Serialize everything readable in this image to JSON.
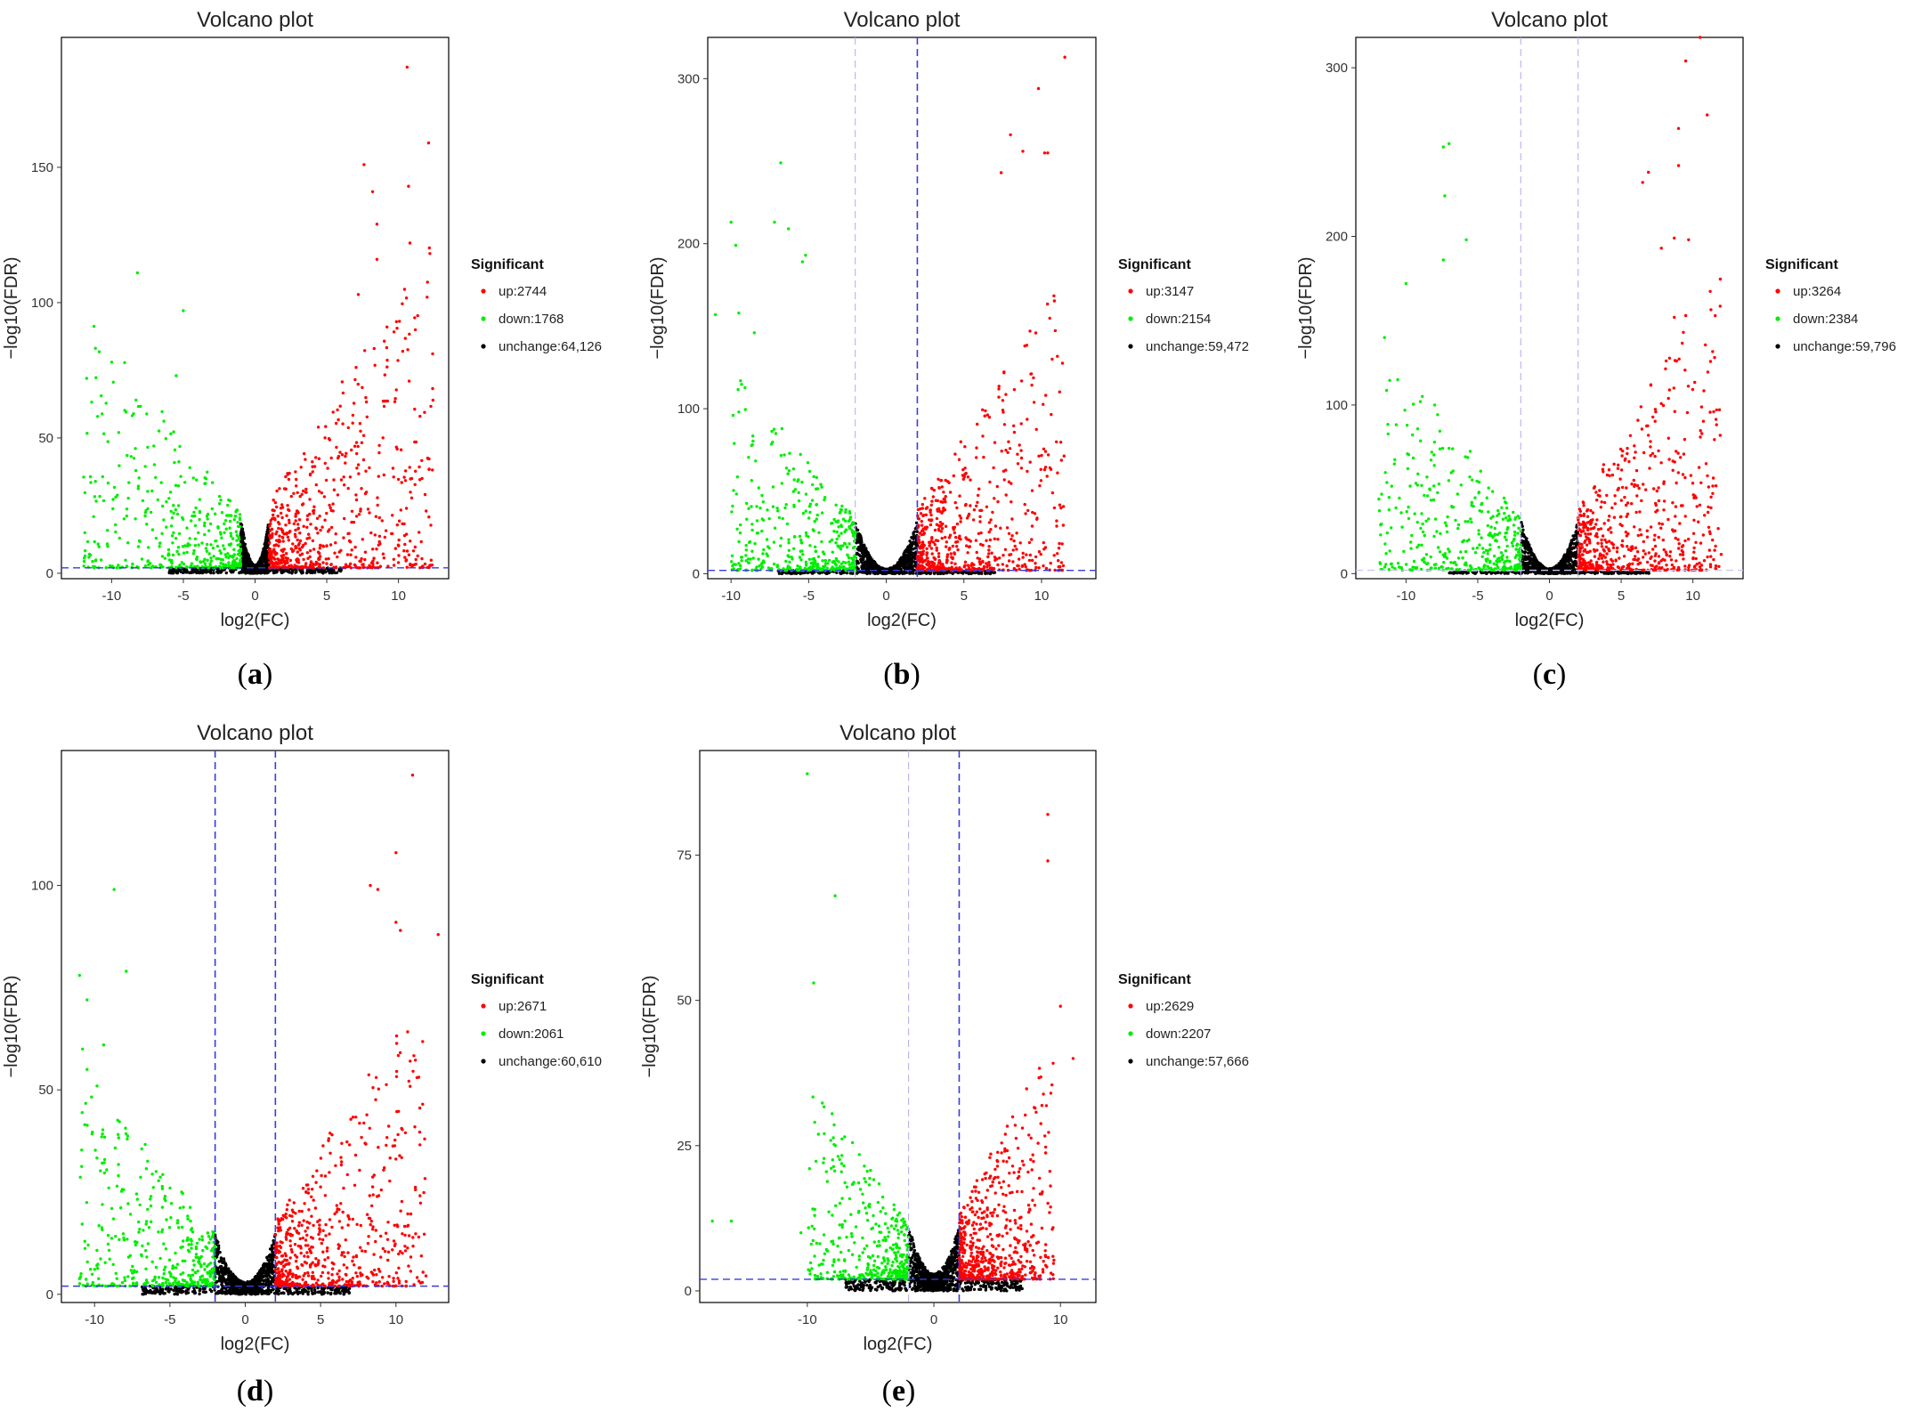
{
  "chart_data": [
    {
      "id": "a",
      "panel_label": "a",
      "type": "scatter",
      "title": "Volcano plot",
      "xlabel": "log2(FC)",
      "ylabel": "−log10(FDR)",
      "xlim": [
        -13.5,
        13.5
      ],
      "ylim": [
        -2,
        198
      ],
      "xticks": [
        -10,
        -5,
        0,
        5,
        10
      ],
      "yticks": [
        0,
        50,
        100,
        150
      ],
      "fc_threshold": 1,
      "fdr_line": 2,
      "vlines_visible": false,
      "hline_visible": true,
      "legend": {
        "title": "Significant",
        "position": "right",
        "entries": [
          {
            "label": "up:2744",
            "color": "#ff0000",
            "count": 2744
          },
          {
            "label": "down:1768",
            "color": "#00ee00",
            "count": 1768
          },
          {
            "label": "unchange:64,126",
            "color": "#000000",
            "count": 64126
          }
        ]
      },
      "spread": {
        "left": 12,
        "right": 12.5
      },
      "outliers": [
        [
          10.6,
          187
        ],
        [
          12.1,
          159
        ],
        [
          7.6,
          151
        ],
        [
          8.2,
          141
        ],
        [
          10.7,
          143
        ],
        [
          8.5,
          129
        ],
        [
          10.8,
          122
        ],
        [
          8.5,
          116
        ],
        [
          7.2,
          103
        ],
        [
          9.2,
          91
        ],
        [
          12.0,
          102
        ],
        [
          11.5,
          58
        ],
        [
          10.3,
          82
        ],
        [
          -8.2,
          111
        ],
        [
          -5.0,
          97
        ],
        [
          -10.0,
          78
        ],
        [
          -5.5,
          73
        ],
        [
          -8.3,
          64
        ],
        [
          -9.5,
          52
        ]
      ]
    },
    {
      "id": "b",
      "panel_label": "b",
      "type": "scatter",
      "title": "Volcano plot",
      "xlabel": "log2(FC)",
      "ylabel": "−log10(FDR)",
      "xlim": [
        -11.5,
        13.5
      ],
      "ylim": [
        -3,
        325
      ],
      "xticks": [
        -10,
        -5,
        0,
        5,
        10
      ],
      "yticks": [
        0,
        100,
        200,
        300
      ],
      "fc_threshold": 2,
      "fdr_line": 2,
      "vlines_visible": true,
      "vline_style": [
        "faint",
        "bold"
      ],
      "hline_visible": true,
      "legend": {
        "title": "Significant",
        "position": "right",
        "entries": [
          {
            "label": "up:3147",
            "color": "#ff0000",
            "count": 3147
          },
          {
            "label": "down:2154",
            "color": "#00ee00",
            "count": 2154
          },
          {
            "label": "unchange:59,472",
            "color": "#000000",
            "count": 59472
          }
        ]
      },
      "spread": {
        "left": 10,
        "right": 11.5
      },
      "outliers": [
        [
          11.5,
          313
        ],
        [
          9.8,
          294
        ],
        [
          10.2,
          255
        ],
        [
          10.4,
          255
        ],
        [
          8.0,
          266
        ],
        [
          8.8,
          256
        ],
        [
          7.4,
          243
        ],
        [
          -6.8,
          249
        ],
        [
          -10.0,
          213
        ],
        [
          -9.7,
          199
        ],
        [
          -7.2,
          213
        ],
        [
          -6.3,
          209
        ],
        [
          -5.2,
          193
        ],
        [
          -5.4,
          189
        ],
        [
          -11.0,
          157
        ],
        [
          -9.5,
          158
        ],
        [
          -8.5,
          146
        ],
        [
          -9.5,
          98
        ]
      ]
    },
    {
      "id": "c",
      "panel_label": "c",
      "type": "scatter",
      "title": "Volcano plot",
      "xlabel": "log2(FC)",
      "ylabel": "−log10(FDR)",
      "xlim": [
        -13.5,
        13.5
      ],
      "ylim": [
        -3,
        318
      ],
      "xticks": [
        -10,
        -5,
        0,
        5,
        10
      ],
      "yticks": [
        0,
        100,
        200,
        300
      ],
      "fc_threshold": 2,
      "fdr_line": 2,
      "vlines_visible": true,
      "vline_style": [
        "faint",
        "faint"
      ],
      "hline_visible": true,
      "legend": {
        "title": "Significant",
        "position": "right",
        "entries": [
          {
            "label": "up:3264",
            "color": "#ff0000",
            "count": 3264
          },
          {
            "label": "down:2384",
            "color": "#00ee00",
            "count": 2384
          },
          {
            "label": "unchange:59,796",
            "color": "#000000",
            "count": 59796
          }
        ]
      },
      "spread": {
        "left": 12,
        "right": 12
      },
      "outliers": [
        [
          10.5,
          318
        ],
        [
          9.5,
          304
        ],
        [
          11.0,
          272
        ],
        [
          9.0,
          264
        ],
        [
          9.0,
          242
        ],
        [
          6.9,
          238
        ],
        [
          6.5,
          232
        ],
        [
          8.7,
          199
        ],
        [
          9.7,
          198
        ],
        [
          9.5,
          153
        ],
        [
          8.7,
          152
        ],
        [
          7.8,
          193
        ],
        [
          -7.0,
          255
        ],
        [
          -7.4,
          253
        ],
        [
          -7.3,
          224
        ],
        [
          -5.8,
          198
        ],
        [
          -7.4,
          186
        ],
        [
          -10.0,
          172
        ],
        [
          -11.5,
          140
        ],
        [
          -9.0,
          102
        ],
        [
          -8.0,
          100
        ]
      ]
    },
    {
      "id": "d",
      "panel_label": "d",
      "type": "scatter",
      "title": "Volcano plot",
      "xlabel": "log2(FC)",
      "ylabel": "−log10(FDR)",
      "xlim": [
        -12.2,
        13.5
      ],
      "ylim": [
        -2,
        133
      ],
      "xticks": [
        -10,
        -5,
        0,
        5,
        10
      ],
      "yticks": [
        0,
        50,
        100
      ],
      "fc_threshold": 2,
      "fdr_line": 2,
      "vlines_visible": true,
      "vline_style": [
        "bold",
        "bold"
      ],
      "hline_visible": true,
      "legend": {
        "title": "Significant",
        "position": "right",
        "entries": [
          {
            "label": "up:2671",
            "color": "#ff0000",
            "count": 2671
          },
          {
            "label": "down:2061",
            "color": "#00ee00",
            "count": 2061
          },
          {
            "label": "unchange:60,610",
            "color": "#000000",
            "count": 60610
          }
        ]
      },
      "spread": {
        "left": 11,
        "right": 12
      },
      "outliers": [
        [
          11.1,
          127
        ],
        [
          10.0,
          108
        ],
        [
          8.3,
          100
        ],
        [
          8.8,
          99
        ],
        [
          10.0,
          91
        ],
        [
          10.3,
          89
        ],
        [
          12.8,
          88
        ],
        [
          -8.7,
          99
        ],
        [
          -11.0,
          78
        ],
        [
          -7.9,
          79
        ],
        [
          -10.5,
          72
        ],
        [
          -9.4,
          61
        ],
        [
          -10.8,
          60
        ],
        [
          -10.5,
          55
        ]
      ]
    },
    {
      "id": "e",
      "panel_label": "e",
      "type": "scatter",
      "title": "Volcano plot",
      "xlabel": "log2(FC)",
      "ylabel": "−log10(FDR)",
      "xlim": [
        -18.5,
        12.8
      ],
      "ylim": [
        -2,
        93
      ],
      "xticks": [
        -10,
        0,
        10
      ],
      "yticks": [
        0,
        25,
        50,
        75
      ],
      "fc_threshold": 2,
      "fdr_line": 2,
      "vlines_visible": true,
      "vline_style": [
        "faint",
        "bold"
      ],
      "hline_visible": true,
      "legend": {
        "title": "Significant",
        "position": "right",
        "entries": [
          {
            "label": "up:2629",
            "color": "#ff0000",
            "count": 2629
          },
          {
            "label": "down:2207",
            "color": "#00ee00",
            "count": 2207
          },
          {
            "label": "unchange:57,666",
            "color": "#000000",
            "count": 57666
          }
        ]
      },
      "spread": {
        "left": 10,
        "right": 9.5
      },
      "outliers": [
        [
          9.0,
          82
        ],
        [
          9.0,
          74
        ],
        [
          10.0,
          49
        ],
        [
          11.0,
          40
        ],
        [
          -10.0,
          89
        ],
        [
          -7.8,
          68
        ],
        [
          -9.5,
          53
        ],
        [
          -16.0,
          12
        ],
        [
          -17.5,
          12
        ],
        [
          -10.5,
          10
        ]
      ]
    }
  ]
}
